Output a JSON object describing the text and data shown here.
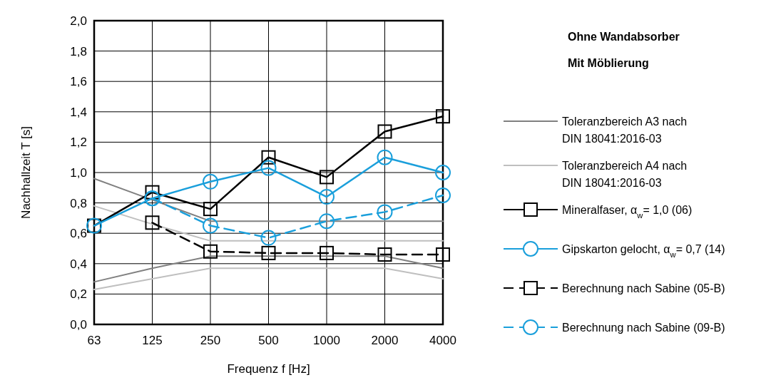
{
  "chart_data": {
    "type": "line",
    "xlabel": "Frequenz f [Hz]",
    "ylabel": "Nachhallzeit T [s]",
    "categories": [
      "63",
      "125",
      "250",
      "500",
      "1000",
      "2000",
      "4000"
    ],
    "ylim": [
      0,
      2
    ],
    "yticks": [
      {
        "value": 0,
        "label": "0,0"
      },
      {
        "value": 0.2,
        "label": "0,2"
      },
      {
        "value": 0.4,
        "label": "0,4"
      },
      {
        "value": 0.6,
        "label": "0,6"
      },
      {
        "value": 0.8,
        "label": "0,8"
      },
      {
        "value": 1,
        "label": "1,0"
      },
      {
        "value": 1.2,
        "label": "1,2"
      },
      {
        "value": 1.4,
        "label": "1,4"
      },
      {
        "value": 1.6,
        "label": "1,6"
      },
      {
        "value": 1.8,
        "label": "1,8"
      },
      {
        "value": 2,
        "label": "2,0"
      }
    ],
    "grid": true,
    "legend": "right",
    "annotations": [
      "Ohne Wandabsorber",
      "Mit Möblierung"
    ],
    "series": [
      {
        "name": "Toleranzbereich A3 nach DIN 18041:2016-03",
        "color": "#808080",
        "marker": "none",
        "line_style": "solid",
        "values": [
          0.96,
          0.82,
          0.68,
          0.68,
          0.68,
          0.68,
          0.68
        ]
      },
      {
        "color": "#808080",
        "marker": "none",
        "line_style": "solid",
        "values": [
          0.28,
          0.37,
          0.45,
          0.45,
          0.45,
          0.45,
          0.37
        ]
      },
      {
        "name": "Toleranzbereich A4 nach DIN 18041:2016-03",
        "color": "#bfbfbf",
        "marker": "none",
        "line_style": "solid",
        "values": [
          0.78,
          0.66,
          0.55,
          0.55,
          0.55,
          0.55,
          0.55
        ]
      },
      {
        "color": "#bfbfbf",
        "marker": "none",
        "line_style": "solid",
        "values": [
          0.23,
          0.3,
          0.37,
          0.37,
          0.37,
          0.37,
          0.3
        ]
      },
      {
        "name": "Mineralfaser, α$_{w}$= 1,0 (06)",
        "color": "#000000",
        "marker": "square",
        "line_style": "solid",
        "values": [
          0.65,
          0.87,
          0.76,
          1.1,
          0.97,
          1.27,
          1.37
        ]
      },
      {
        "name": "Gipskarton gelocht, α$_{w}$= 0,7 (14)",
        "color": "#1a9fdb",
        "marker": "circle",
        "line_style": "solid",
        "values": [
          0.65,
          0.83,
          0.94,
          1.03,
          0.84,
          1.1,
          1.0
        ]
      },
      {
        "name": "Berechnung nach Sabine (05-B)",
        "color": "#000000",
        "marker": "square",
        "line_style": "dashed",
        "values": [
          null,
          0.67,
          0.48,
          0.47,
          0.47,
          0.46,
          0.46
        ]
      },
      {
        "name": "Berechnung nach Sabine (09-B)",
        "color": "#1a9fdb",
        "marker": "circle",
        "line_style": "dashed",
        "values": [
          null,
          0.83,
          0.65,
          0.57,
          0.68,
          0.74,
          0.85
        ]
      }
    ]
  }
}
